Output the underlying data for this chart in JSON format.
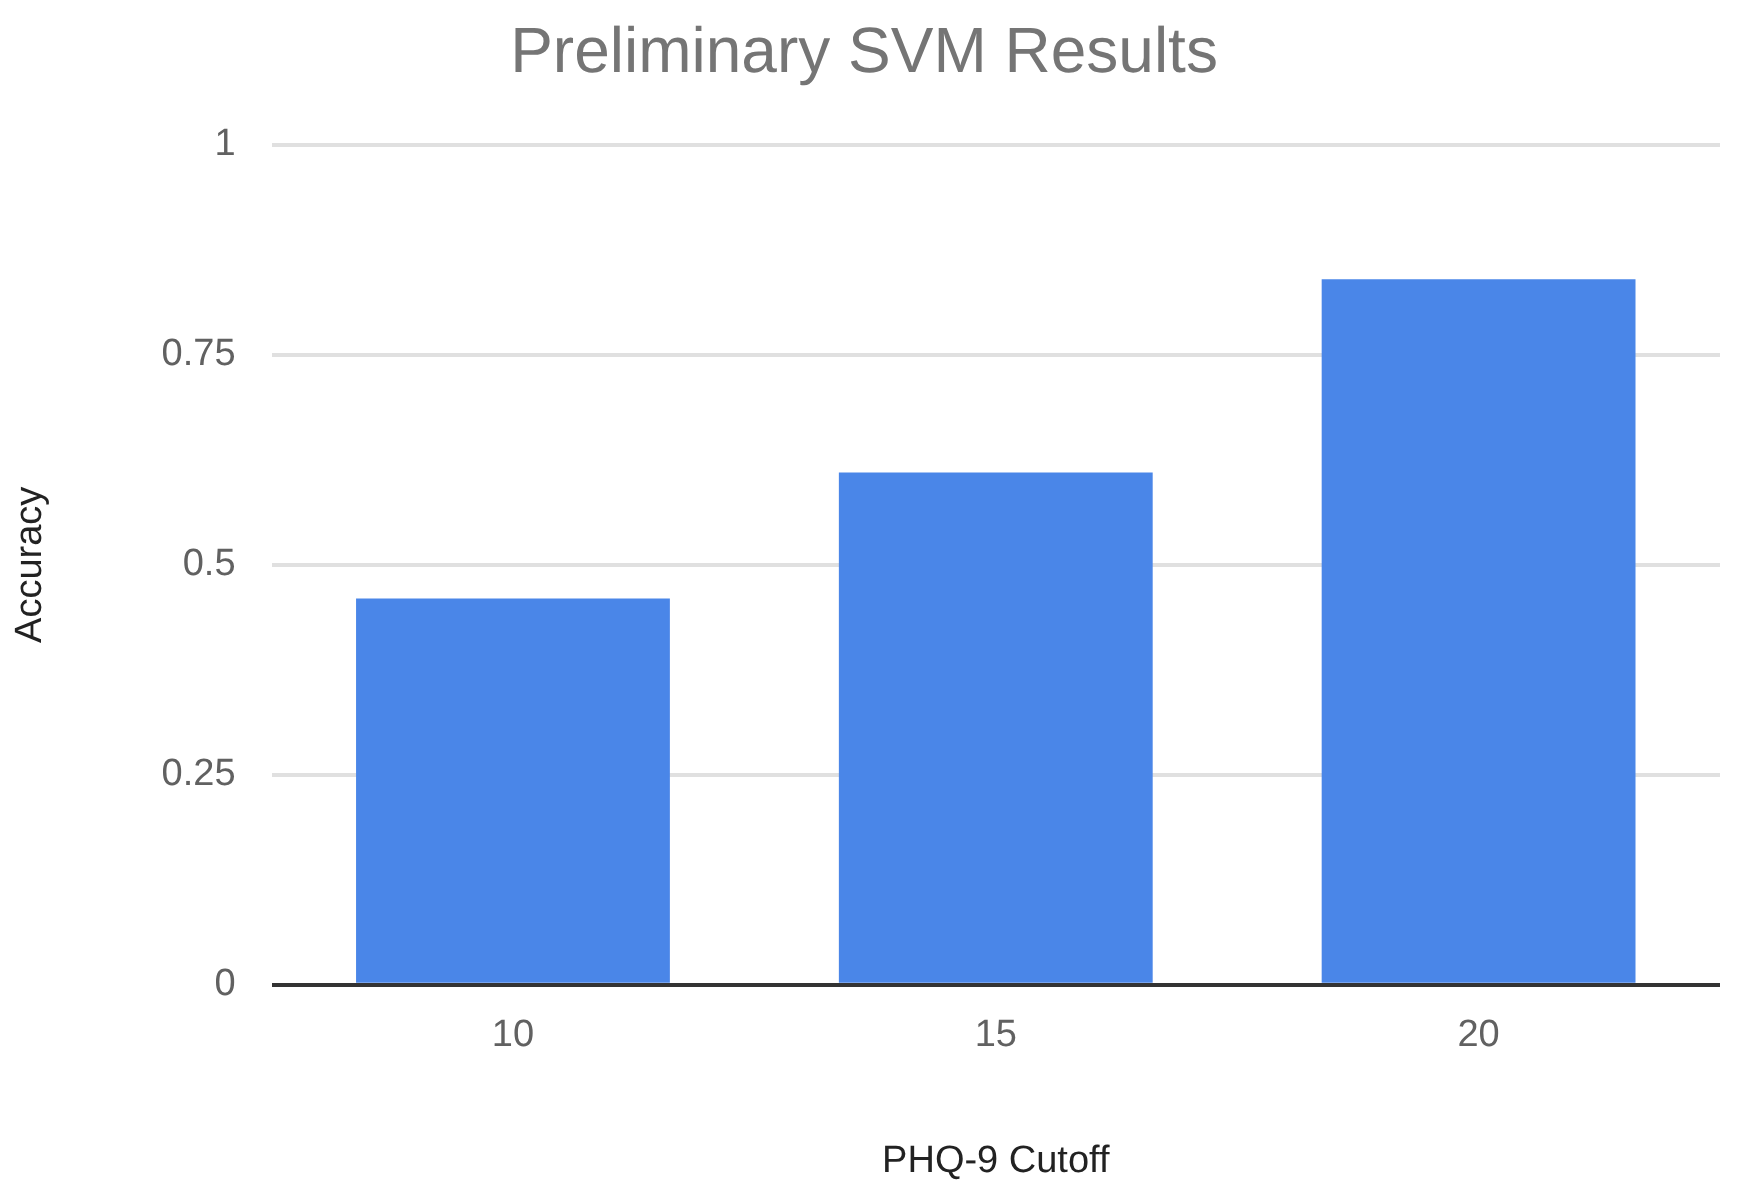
{
  "chart_data": {
    "type": "bar",
    "title": "Preliminary SVM Results",
    "xlabel": "PHQ-9 Cutoff",
    "ylabel": "Accuracy",
    "categories": [
      "10",
      "15",
      "20"
    ],
    "series": [
      {
        "color": "#4a86e8",
        "values": [
          0.46,
          0.61,
          0.84
        ]
      }
    ],
    "ylim": [
      0,
      1
    ],
    "yticks": [
      0,
      0.25,
      0.5,
      0.75,
      1
    ],
    "grid": "y",
    "legend": false
  }
}
